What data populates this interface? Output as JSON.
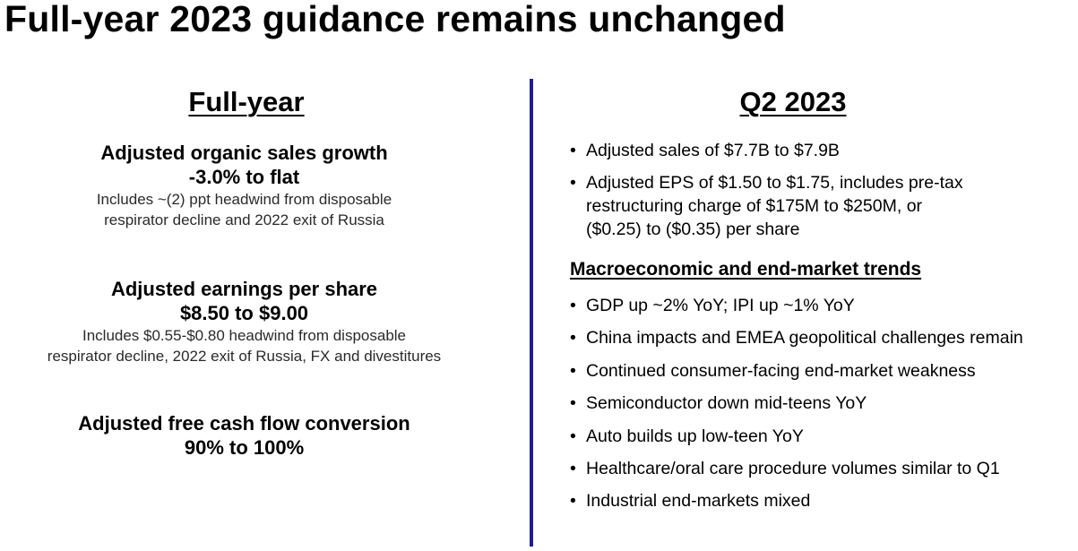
{
  "title": "Full-year 2023 guidance remains unchanged",
  "full_year": {
    "heading": "Full-year",
    "metrics": [
      {
        "title": "Adjusted organic sales growth",
        "value": "-3.0% to flat",
        "note_lines": [
          "Includes ~(2) ppt headwind from disposable",
          "respirator decline and 2022 exit of Russia"
        ]
      },
      {
        "title": "Adjusted earnings per share",
        "value": "$8.50 to $9.00",
        "note_lines": [
          "Includes $0.55-$0.80 headwind from disposable",
          "respirator decline, 2022 exit of Russia, FX and divestitures"
        ]
      },
      {
        "title": "Adjusted free cash flow conversion",
        "value": "90% to 100%"
      }
    ]
  },
  "q2": {
    "heading": "Q2 2023",
    "bullets": [
      {
        "lines": [
          "Adjusted sales of $7.7B to $7.9B"
        ]
      },
      {
        "lines": [
          "Adjusted EPS of $1.50 to $1.75, includes pre-tax",
          "restructuring charge of $175M to $250M,  or",
          "($0.25) to ($0.35) per share"
        ]
      }
    ],
    "macro_heading": "Macroeconomic and end-market trends",
    "macro_bullets": [
      "GDP up ~2% YoY; IPI up ~1% YoY",
      "China impacts and EMEA geopolitical challenges remain",
      "Continued consumer-facing end-market weakness",
      "Semiconductor down mid-teens YoY",
      "Auto builds up low-teen YoY",
      "Healthcare/oral care procedure volumes similar to Q1",
      "Industrial end-markets mixed"
    ]
  },
  "bullet_glyph": "•",
  "colors": {
    "divider": "#1f1f8f",
    "text": "#000000"
  }
}
